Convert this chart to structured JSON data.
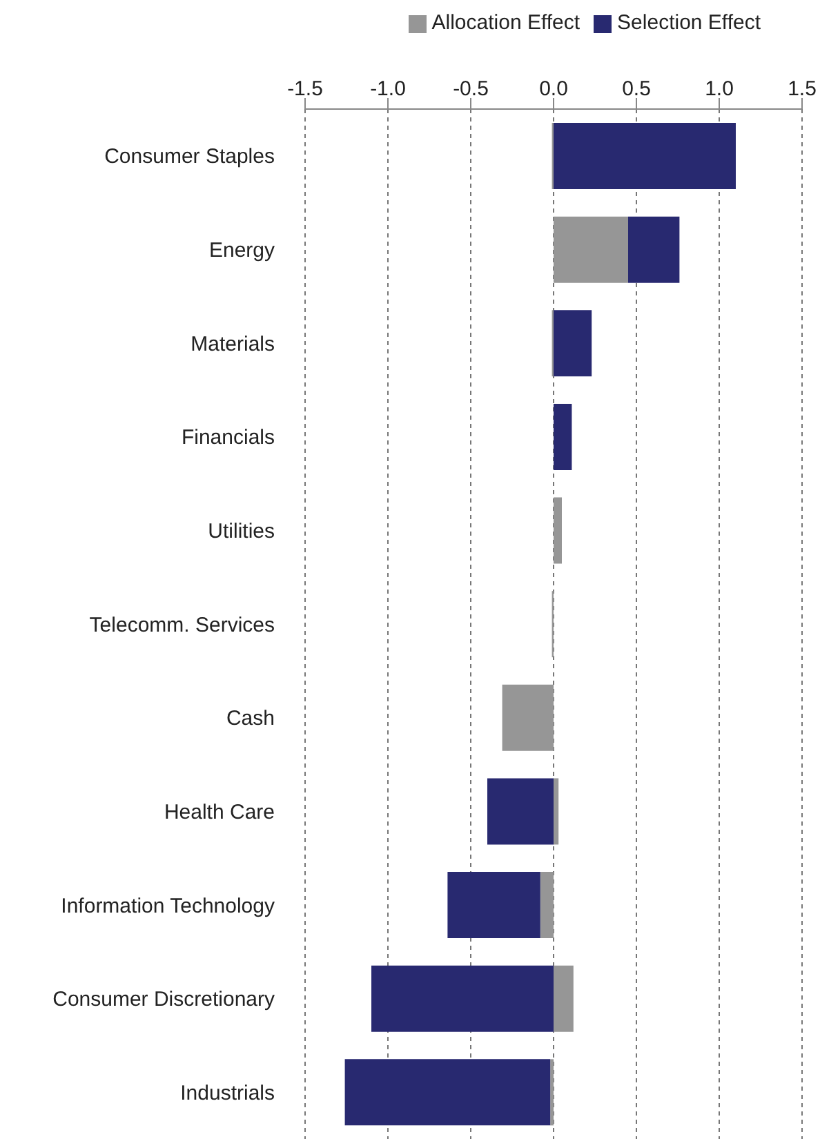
{
  "chart_data": {
    "type": "bar",
    "orientation": "horizontal",
    "stacked": true,
    "categories": [
      "Consumer Staples",
      "Energy",
      "Materials",
      "Financials",
      "Utilities",
      "Telecomm. Services",
      "Cash",
      "Health Care",
      "Information Technology",
      "Consumer Discretionary",
      "Industrials"
    ],
    "series": [
      {
        "name": "Allocation Effect",
        "color": "#969696",
        "values": [
          -0.01,
          0.45,
          -0.01,
          0,
          0.05,
          -0.01,
          -0.31,
          0.03,
          -0.08,
          0.12,
          -0.02
        ]
      },
      {
        "name": "Selection Effect",
        "color": "#282970",
        "values": [
          1.1,
          0.31,
          0.23,
          0.11,
          0,
          0,
          0,
          -0.4,
          -0.56,
          -1.1,
          -1.24
        ]
      }
    ],
    "xlim": [
      -1.5,
      1.5
    ],
    "xticks": [
      {
        "value": -1.5,
        "label": "-1.5"
      },
      {
        "value": -1,
        "label": "-1.0"
      },
      {
        "value": -0.5,
        "label": "-0.5"
      },
      {
        "value": 0,
        "label": "0.0"
      },
      {
        "value": 0.5,
        "label": "0.5"
      },
      {
        "value": 1,
        "label": "1.0"
      },
      {
        "value": 1.5,
        "label": "1.5"
      }
    ],
    "grid": "x",
    "legend": "top right"
  }
}
